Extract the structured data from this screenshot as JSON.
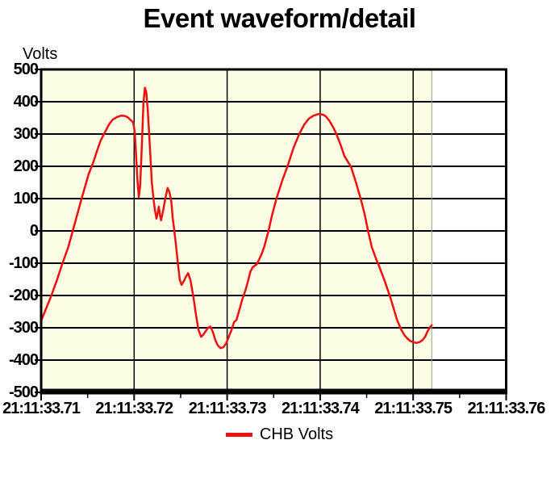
{
  "chart_data": {
    "type": "line",
    "title": "Event waveform/detail",
    "ylabel": "Volts",
    "xlabel": "",
    "grid": true,
    "legend_position": "bottom",
    "plot_bg_color": "#fdfde4",
    "outside_data_bg_color": "#ffffff",
    "grid_color": "#000000",
    "ylim": [
      -500,
      500
    ],
    "y_tick_labels": [
      "500",
      "400",
      "300",
      "200",
      "100",
      "0",
      "-100",
      "-200",
      "-300",
      "-400",
      "-500"
    ],
    "y_tick_values": [
      500,
      400,
      300,
      200,
      100,
      0,
      -100,
      -200,
      -300,
      -400,
      -500
    ],
    "x_tick_labels": [
      "21:11:33.71",
      "21:11:33.72",
      "21:11:33.73",
      "21:11:33.74",
      "21:11:33.75",
      "21:11:33.76"
    ],
    "x_tick_times_ms": [
      0,
      10,
      20,
      30,
      40,
      50
    ],
    "x_minor_tick_times_ms": [
      5,
      15,
      25,
      35,
      45
    ],
    "data_region_end_ms": 42,
    "series": [
      {
        "name": "CHB Volts",
        "color": "#ee1111",
        "points_unit": "[milliseconds after 21:11:33.71, volts]",
        "points": [
          [
            0,
            -278
          ],
          [
            0.4,
            -250
          ],
          [
            0.8,
            -222
          ],
          [
            1.1,
            -200
          ],
          [
            1.7,
            -152
          ],
          [
            2.3,
            -100
          ],
          [
            2.9,
            -52
          ],
          [
            3.4,
            0
          ],
          [
            3.8,
            42
          ],
          [
            4.3,
            95
          ],
          [
            4.7,
            135
          ],
          [
            5.1,
            175
          ],
          [
            5.6,
            212
          ],
          [
            6.0,
            247
          ],
          [
            6.4,
            280
          ],
          [
            6.9,
            308
          ],
          [
            7.3,
            330
          ],
          [
            7.7,
            345
          ],
          [
            8.2,
            353
          ],
          [
            8.6,
            357
          ],
          [
            9.0,
            356
          ],
          [
            9.3,
            352
          ],
          [
            9.6,
            344
          ],
          [
            9.9,
            336
          ],
          [
            10.05,
            310
          ],
          [
            10.2,
            240
          ],
          [
            10.35,
            160
          ],
          [
            10.5,
            105
          ],
          [
            10.65,
            140
          ],
          [
            10.85,
            280
          ],
          [
            11.0,
            395
          ],
          [
            11.15,
            443
          ],
          [
            11.3,
            430
          ],
          [
            11.45,
            380
          ],
          [
            11.6,
            310
          ],
          [
            11.75,
            230
          ],
          [
            11.9,
            150
          ],
          [
            12.1,
            95
          ],
          [
            12.25,
            62
          ],
          [
            12.4,
            38
          ],
          [
            12.55,
            58
          ],
          [
            12.65,
            75
          ],
          [
            12.78,
            48
          ],
          [
            12.9,
            33
          ],
          [
            13.1,
            60
          ],
          [
            13.35,
            100
          ],
          [
            13.6,
            133
          ],
          [
            13.8,
            120
          ],
          [
            14.0,
            90
          ],
          [
            14.15,
            40
          ],
          [
            14.3,
            5
          ],
          [
            14.5,
            -45
          ],
          [
            14.7,
            -100
          ],
          [
            14.9,
            -150
          ],
          [
            15.1,
            -167
          ],
          [
            15.35,
            -155
          ],
          [
            15.6,
            -140
          ],
          [
            15.8,
            -131
          ],
          [
            16.05,
            -152
          ],
          [
            16.4,
            -210
          ],
          [
            16.65,
            -260
          ],
          [
            16.9,
            -305
          ],
          [
            17.2,
            -328
          ],
          [
            17.45,
            -321
          ],
          [
            17.7,
            -310
          ],
          [
            17.95,
            -300
          ],
          [
            18.2,
            -296
          ],
          [
            18.5,
            -316
          ],
          [
            18.75,
            -340
          ],
          [
            19.0,
            -355
          ],
          [
            19.3,
            -363
          ],
          [
            19.6,
            -360
          ],
          [
            19.9,
            -348
          ],
          [
            20.15,
            -330
          ],
          [
            20.5,
            -304
          ],
          [
            20.75,
            -282
          ],
          [
            21.0,
            -276
          ],
          [
            21.3,
            -246
          ],
          [
            21.6,
            -215
          ],
          [
            21.95,
            -185
          ],
          [
            22.2,
            -160
          ],
          [
            22.5,
            -126
          ],
          [
            22.75,
            -112
          ],
          [
            23.2,
            -103
          ],
          [
            23.7,
            -72
          ],
          [
            24.0,
            -48
          ],
          [
            24.45,
            0
          ],
          [
            24.8,
            45
          ],
          [
            25.3,
            100
          ],
          [
            25.95,
            158
          ],
          [
            26.55,
            205
          ],
          [
            27.15,
            258
          ],
          [
            27.75,
            300
          ],
          [
            28.3,
            330
          ],
          [
            28.8,
            348
          ],
          [
            29.3,
            357
          ],
          [
            29.85,
            362
          ],
          [
            30.3,
            360
          ],
          [
            30.6,
            355
          ],
          [
            31.0,
            341
          ],
          [
            31.4,
            321
          ],
          [
            31.75,
            300
          ],
          [
            32.2,
            266
          ],
          [
            32.6,
            232
          ],
          [
            33.05,
            211
          ],
          [
            33.3,
            200
          ],
          [
            33.85,
            150
          ],
          [
            34.35,
            100
          ],
          [
            34.8,
            50
          ],
          [
            35.15,
            0
          ],
          [
            35.55,
            -50
          ],
          [
            36.0,
            -86
          ],
          [
            36.35,
            -110
          ],
          [
            36.9,
            -152
          ],
          [
            37.5,
            -202
          ],
          [
            37.9,
            -240
          ],
          [
            38.25,
            -274
          ],
          [
            38.7,
            -305
          ],
          [
            39.05,
            -322
          ],
          [
            39.4,
            -334
          ],
          [
            39.7,
            -341
          ],
          [
            40.0,
            -344
          ],
          [
            40.35,
            -347
          ],
          [
            40.7,
            -344
          ],
          [
            41.05,
            -337
          ],
          [
            41.3,
            -327
          ],
          [
            41.55,
            -311
          ],
          [
            41.8,
            -298
          ],
          [
            42.0,
            -292
          ]
        ]
      }
    ]
  }
}
